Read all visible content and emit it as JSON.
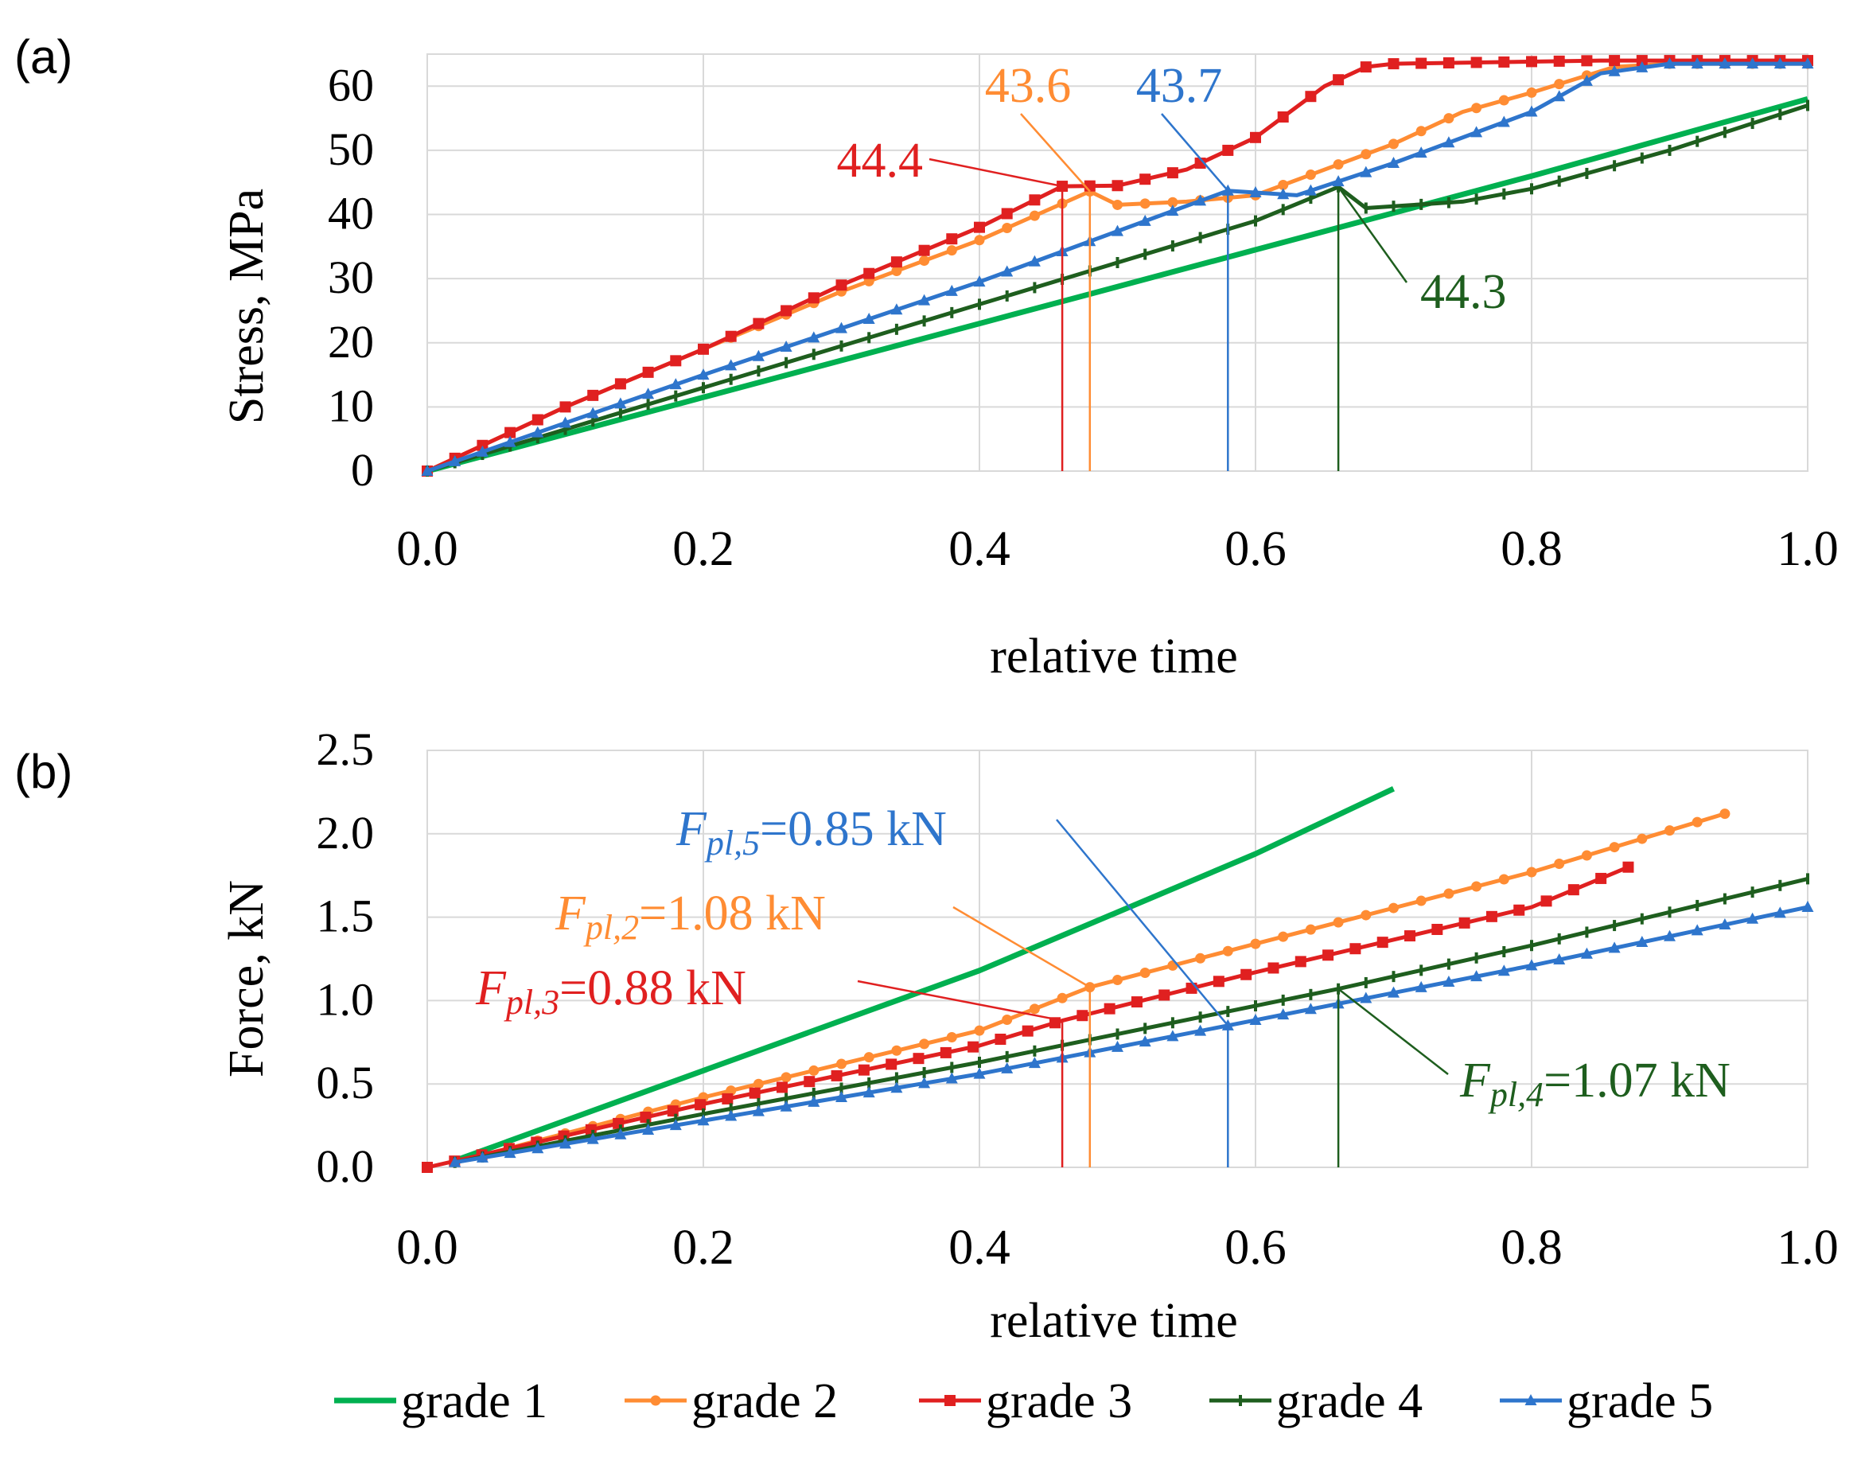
{
  "chart_data": [
    {
      "panel_label": "(a)",
      "type": "line",
      "xlabel": "relative time",
      "ylabel": "Stress, MPa",
      "xlim": [
        0,
        1
      ],
      "ylim": [
        0,
        65
      ],
      "xticks": [
        0,
        0.2,
        0.4,
        0.6,
        0.8,
        1.0
      ],
      "xtick_labels": [
        "0.0",
        "0.2",
        "0.4",
        "0.6",
        "0.8",
        "1.0"
      ],
      "yticks": [
        0,
        10,
        20,
        30,
        40,
        50,
        60
      ],
      "ytick_labels": [
        "0",
        "10",
        "20",
        "30",
        "40",
        "50",
        "60"
      ],
      "grid": true,
      "series": [
        {
          "name": "grade 1",
          "color": "#00b050",
          "marker": "none",
          "points": [
            [
              0,
              0
            ],
            [
              0.2,
              11.5
            ],
            [
              0.4,
              23
            ],
            [
              0.6,
              34.5
            ],
            [
              0.8,
              46
            ],
            [
              1.0,
              58
            ]
          ]
        },
        {
          "name": "grade 2",
          "color": "#ff8c33",
          "marker": "circle",
          "points": [
            [
              0,
              0
            ],
            [
              0.1,
              10
            ],
            [
              0.2,
              19
            ],
            [
              0.3,
              28
            ],
            [
              0.4,
              36
            ],
            [
              0.48,
              43.6
            ],
            [
              0.5,
              41.5
            ],
            [
              0.55,
              42
            ],
            [
              0.6,
              43
            ],
            [
              0.7,
              51
            ],
            [
              0.75,
              56
            ],
            [
              0.8,
              59
            ],
            [
              0.86,
              63
            ],
            [
              0.9,
              63.5
            ],
            [
              1.0,
              63.5
            ]
          ]
        },
        {
          "name": "grade 3",
          "color": "#e02020",
          "marker": "square",
          "points": [
            [
              0,
              0
            ],
            [
              0.1,
              10
            ],
            [
              0.2,
              19
            ],
            [
              0.3,
              29
            ],
            [
              0.4,
              38
            ],
            [
              0.46,
              44.4
            ],
            [
              0.5,
              44.5
            ],
            [
              0.55,
              47
            ],
            [
              0.6,
              52
            ],
            [
              0.65,
              60
            ],
            [
              0.68,
              63
            ],
            [
              0.7,
              63.5
            ],
            [
              0.85,
              64
            ],
            [
              1.0,
              64
            ]
          ]
        },
        {
          "name": "grade 4",
          "color": "#1e5e1e",
          "marker": "tick",
          "points": [
            [
              0,
              0
            ],
            [
              0.2,
              13
            ],
            [
              0.4,
              26
            ],
            [
              0.6,
              39
            ],
            [
              0.66,
              44.3
            ],
            [
              0.68,
              41
            ],
            [
              0.75,
              42
            ],
            [
              0.8,
              44
            ],
            [
              0.9,
              50
            ],
            [
              1.0,
              57
            ]
          ]
        },
        {
          "name": "grade 5",
          "color": "#2e75cc",
          "marker": "triangle",
          "points": [
            [
              0,
              0
            ],
            [
              0.2,
              15
            ],
            [
              0.4,
              29.5
            ],
            [
              0.58,
              43.7
            ],
            [
              0.63,
              43
            ],
            [
              0.7,
              48
            ],
            [
              0.8,
              56
            ],
            [
              0.85,
              62
            ],
            [
              0.9,
              63.5
            ],
            [
              1.0,
              63.5
            ]
          ]
        }
      ],
      "annotations": [
        {
          "text": "44.4",
          "color": "#e02020",
          "x": 0.46,
          "y": 44.4
        },
        {
          "text": "43.6",
          "color": "#ff8c33",
          "x": 0.48,
          "y": 43.6
        },
        {
          "text": "43.7",
          "color": "#2e75cc",
          "x": 0.58,
          "y": 43.7
        },
        {
          "text": "44.3",
          "color": "#1e5e1e",
          "x": 0.66,
          "y": 44.3
        }
      ]
    },
    {
      "panel_label": "(b)",
      "type": "line",
      "xlabel": "relative time",
      "ylabel": "Force, kN",
      "xlim": [
        0,
        1
      ],
      "ylim": [
        0,
        2.5
      ],
      "xticks": [
        0,
        0.2,
        0.4,
        0.6,
        0.8,
        1.0
      ],
      "xtick_labels": [
        "0.0",
        "0.2",
        "0.4",
        "0.6",
        "0.8",
        "1.0"
      ],
      "yticks": [
        0,
        0.5,
        1.0,
        1.5,
        2.0,
        2.5
      ],
      "ytick_labels": [
        "0.0",
        "0.5",
        "1.0",
        "1.5",
        "2.0",
        "2.5"
      ],
      "grid": true,
      "series": [
        {
          "name": "grade 1",
          "color": "#00b050",
          "marker": "none",
          "points": [
            [
              0.02,
              0.04
            ],
            [
              0.2,
              0.58
            ],
            [
              0.4,
              1.18
            ],
            [
              0.6,
              1.88
            ],
            [
              0.7,
              2.27
            ]
          ]
        },
        {
          "name": "grade 2",
          "color": "#ff8c33",
          "marker": "circle",
          "points": [
            [
              0.02,
              0.03
            ],
            [
              0.2,
              0.42
            ],
            [
              0.4,
              0.82
            ],
            [
              0.48,
              1.08
            ],
            [
              0.6,
              1.34
            ],
            [
              0.8,
              1.77
            ],
            [
              0.94,
              2.12
            ]
          ]
        },
        {
          "name": "grade 3",
          "color": "#e02020",
          "marker": "square",
          "points": [
            [
              0,
              0
            ],
            [
              0.2,
              0.38
            ],
            [
              0.4,
              0.73
            ],
            [
              0.46,
              0.88
            ],
            [
              0.6,
              1.17
            ],
            [
              0.8,
              1.56
            ],
            [
              0.87,
              1.8
            ]
          ]
        },
        {
          "name": "grade 4",
          "color": "#1e5e1e",
          "marker": "tick",
          "points": [
            [
              0.02,
              0.03
            ],
            [
              0.2,
              0.32
            ],
            [
              0.4,
              0.63
            ],
            [
              0.66,
              1.07
            ],
            [
              0.8,
              1.33
            ],
            [
              1.0,
              1.73
            ]
          ]
        },
        {
          "name": "grade 5",
          "color": "#2e75cc",
          "marker": "triangle",
          "points": [
            [
              0.02,
              0.03
            ],
            [
              0.2,
              0.28
            ],
            [
              0.4,
              0.56
            ],
            [
              0.58,
              0.85
            ],
            [
              0.8,
              1.21
            ],
            [
              1.0,
              1.56
            ]
          ]
        }
      ],
      "annotations": [
        {
          "label_main": "F",
          "label_sub": "pl,5",
          "value": "=0.85 kN",
          "color": "#2e75cc",
          "x": 0.58,
          "y": 0.85
        },
        {
          "label_main": "F",
          "label_sub": "pl,2",
          "value": "=1.08 kN",
          "color": "#ff8c33",
          "x": 0.48,
          "y": 1.08
        },
        {
          "label_main": "F",
          "label_sub": "pl,3",
          "value": "=0.88 kN",
          "color": "#e02020",
          "x": 0.46,
          "y": 0.88
        },
        {
          "label_main": "F",
          "label_sub": "pl,4",
          "value": "=1.07 kN",
          "color": "#1e5e1e",
          "x": 0.66,
          "y": 1.07
        }
      ]
    }
  ],
  "legend": {
    "placement": "bottom-center",
    "entries": [
      {
        "label": "grade 1",
        "color": "#00b050",
        "marker": "none"
      },
      {
        "label": "grade 2",
        "color": "#ff8c33",
        "marker": "circle"
      },
      {
        "label": "grade 3",
        "color": "#e02020",
        "marker": "square"
      },
      {
        "label": "grade 4",
        "color": "#1e5e1e",
        "marker": "tick"
      },
      {
        "label": "grade 5",
        "color": "#2e75cc",
        "marker": "triangle"
      }
    ]
  }
}
